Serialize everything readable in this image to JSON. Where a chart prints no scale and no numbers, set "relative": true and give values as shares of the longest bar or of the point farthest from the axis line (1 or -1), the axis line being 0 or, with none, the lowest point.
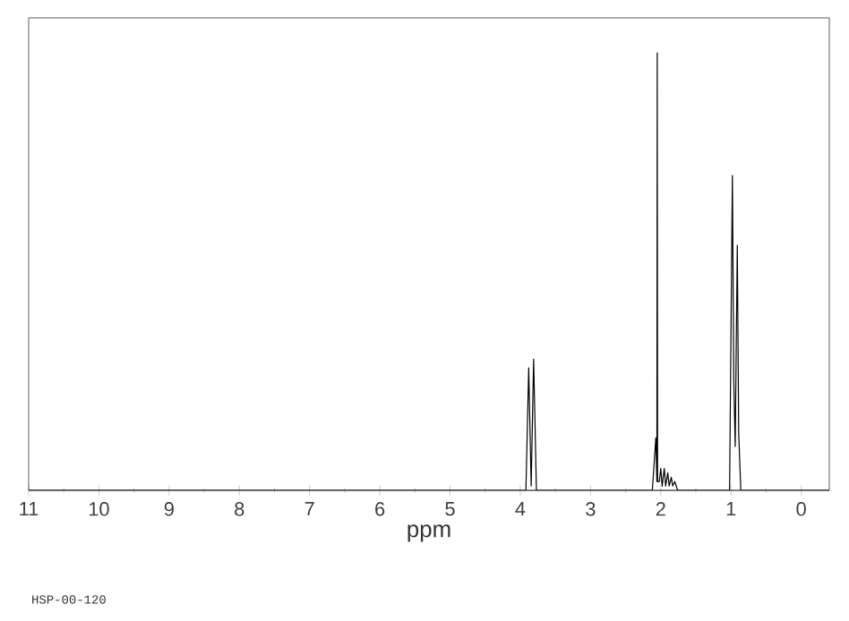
{
  "chart_data": {
    "type": "line",
    "relative": true,
    "xlabel": "ppm",
    "annotations": [
      "HSP-00-120"
    ],
    "xlim": [
      11,
      -0.4
    ],
    "xticks": [
      11,
      10,
      9,
      8,
      7,
      6,
      5,
      4,
      3,
      2,
      1,
      0
    ],
    "grid": false,
    "series": [
      {
        "color": "#000000",
        "x": [
          11,
          3.92,
          3.88,
          3.845,
          3.81,
          3.77,
          2.12,
          2.07,
          2.055,
          2.05,
          2.045,
          2.02,
          2.0,
          1.98,
          1.95,
          1.93,
          1.9,
          1.88,
          1.85,
          1.83,
          1.8,
          1.76,
          1.02,
          0.98,
          0.96,
          0.94,
          0.91,
          0.89,
          0.86,
          -0.4
        ],
        "values": [
          0,
          0,
          0.28,
          0.01,
          0.3,
          0,
          0,
          0.12,
          0.02,
          1.0,
          0.02,
          0.02,
          0.05,
          0.01,
          0.05,
          0.01,
          0.04,
          0.01,
          0.03,
          0.01,
          0.02,
          0,
          0,
          0.72,
          0.25,
          0.1,
          0.56,
          0.13,
          0,
          0
        ]
      }
    ]
  }
}
